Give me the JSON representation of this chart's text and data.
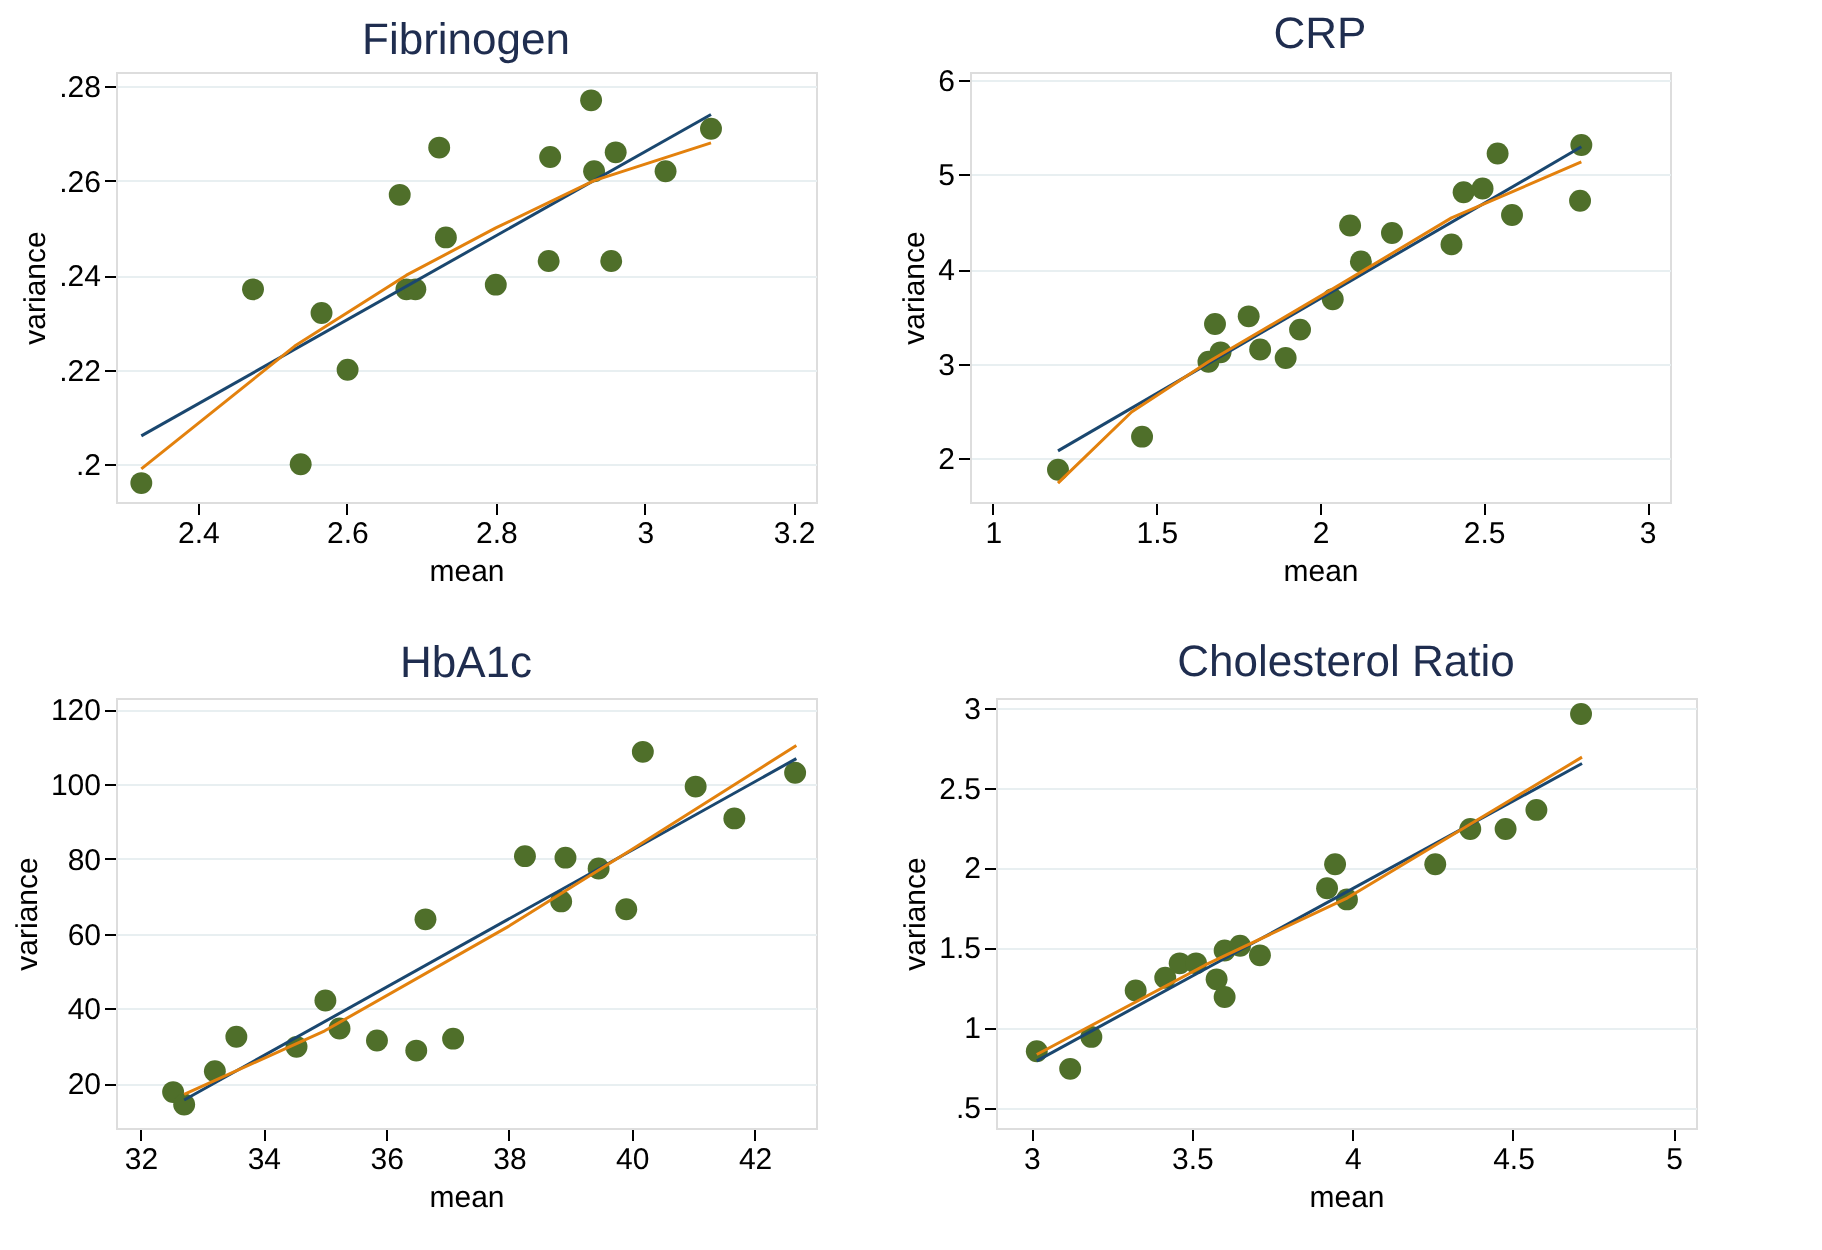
{
  "chart_data": [
    {
      "type": "scatter",
      "title": "Fibrinogen",
      "xlabel": "mean",
      "ylabel": "variance",
      "xlim": [
        2.29,
        3.23
      ],
      "ylim": [
        0.192,
        0.283
      ],
      "xticks": [
        2.4,
        2.6,
        2.8,
        3,
        3.2
      ],
      "yticks": [
        {
          "value": 0.2,
          "label": ".2"
        },
        {
          "value": 0.22,
          "label": ".22"
        },
        {
          "value": 0.24,
          "label": ".24"
        },
        {
          "value": 0.26,
          "label": ".26"
        },
        {
          "value": 0.28,
          "label": ".28"
        }
      ],
      "grid": "y",
      "marker": "circle",
      "line_style": "solid",
      "series": [
        {
          "color": "#4f6f2a",
          "x": [
            2.324,
            2.474,
            2.538,
            2.566,
            2.601,
            2.671,
            2.68,
            2.692,
            2.724,
            2.733,
            2.8,
            2.871,
            2.873,
            2.928,
            2.932,
            2.955,
            2.961,
            3.028,
            3.089
          ],
          "values": [
            0.196,
            0.237,
            0.2,
            0.232,
            0.22,
            0.257,
            0.237,
            0.237,
            0.267,
            0.248,
            0.238,
            0.243,
            0.265,
            0.277,
            0.262,
            0.243,
            0.266,
            0.262,
            0.271
          ]
        },
        {
          "type": "line",
          "marker": "none",
          "color": "#1a476f",
          "x": [
            2.324,
            3.089
          ],
          "values": [
            0.206,
            0.274
          ]
        },
        {
          "type": "line",
          "marker": "none",
          "color": "#e3810d",
          "x": [
            2.324,
            2.53,
            2.68,
            2.8,
            2.932,
            3.089
          ],
          "values": [
            0.199,
            0.225,
            0.24,
            0.25,
            0.26,
            0.268
          ]
        }
      ]
    },
    {
      "type": "scatter",
      "title": "CRP",
      "xlabel": "mean",
      "ylabel": "variance",
      "xlim": [
        0.93,
        3.07
      ],
      "ylim": [
        1.54,
        6.08
      ],
      "xticks": [
        1,
        1.5,
        2,
        2.5,
        3
      ],
      "yticks": [
        2,
        3,
        4,
        5,
        6
      ],
      "grid": "y",
      "marker": "circle",
      "line_style": "solid",
      "series": [
        {
          "color": "#4f6f2a",
          "x": [
            1.199,
            1.456,
            1.659,
            1.679,
            1.696,
            1.782,
            1.817,
            1.895,
            1.939,
            2.039,
            2.092,
            2.125,
            2.22,
            2.402,
            2.439,
            2.497,
            2.543,
            2.587,
            2.799,
            2.795
          ],
          "values": [
            1.88,
            2.23,
            3.02,
            3.42,
            3.12,
            3.5,
            3.15,
            3.06,
            3.36,
            3.68,
            4.46,
            4.08,
            4.38,
            4.26,
            4.81,
            4.85,
            5.22,
            4.57,
            5.31,
            4.72
          ]
        },
        {
          "type": "line",
          "marker": "none",
          "color": "#1a476f",
          "x": [
            1.199,
            2.799
          ],
          "values": [
            2.08,
            5.29
          ]
        },
        {
          "type": "line",
          "marker": "none",
          "color": "#e3810d",
          "x": [
            1.199,
            1.424,
            1.659,
            2.039,
            2.402,
            2.799
          ],
          "values": [
            1.74,
            2.49,
            3.02,
            3.79,
            4.54,
            5.13
          ]
        }
      ]
    },
    {
      "type": "scatter",
      "title": "HbA1c",
      "xlabel": "mean",
      "ylabel": "variance",
      "xlim": [
        31.6,
        43.0
      ],
      "ylim": [
        8,
        123
      ],
      "xticks": [
        32,
        34,
        36,
        38,
        40,
        42
      ],
      "yticks": [
        20,
        40,
        60,
        80,
        100,
        120
      ],
      "grid": "y",
      "marker": "circle",
      "line_style": "solid",
      "series": [
        {
          "color": "#4f6f2a",
          "x": [
            32.53,
            32.71,
            33.21,
            33.56,
            34.54,
            35.01,
            35.24,
            35.85,
            36.49,
            36.64,
            37.09,
            38.26,
            38.85,
            38.92,
            39.46,
            39.91,
            40.18,
            41.04,
            41.67,
            42.66
          ],
          "values": [
            17.6,
            14.3,
            23.2,
            32.4,
            29.7,
            42.1,
            34.6,
            31.4,
            28.7,
            63.8,
            31.9,
            80.7,
            68.6,
            80.3,
            77.4,
            66.5,
            108.6,
            99.3,
            90.8,
            103.0
          ]
        },
        {
          "type": "line",
          "marker": "none",
          "color": "#1a476f",
          "x": [
            32.71,
            42.68
          ],
          "values": [
            15.5,
            106.8
          ]
        },
        {
          "type": "line",
          "marker": "none",
          "color": "#e3810d",
          "x": [
            32.71,
            35,
            38,
            40,
            42.68
          ],
          "values": [
            17.0,
            34,
            62,
            82.5,
            110.3
          ]
        }
      ]
    },
    {
      "type": "scatter",
      "title": "Cholesterol Ratio",
      "xlabel": "mean",
      "ylabel": "variance",
      "xlim": [
        2.89,
        5.07
      ],
      "ylim": [
        0.37,
        3.06
      ],
      "xticks": [
        3,
        3.5,
        4,
        4.5,
        5
      ],
      "yticks": [
        {
          "value": 0.5,
          "label": ".5"
        },
        1,
        1.5,
        2,
        2.5,
        3
      ],
      "grid": "y",
      "marker": "circle",
      "line_style": "solid",
      "series": [
        {
          "color": "#4f6f2a",
          "x": [
            3.017,
            3.121,
            3.187,
            3.325,
            3.417,
            3.462,
            3.513,
            3.577,
            3.602,
            3.602,
            3.65,
            3.712,
            3.921,
            3.946,
            3.983,
            4.258,
            4.367,
            4.477,
            4.573,
            4.712
          ],
          "values": [
            0.85,
            0.74,
            0.94,
            1.23,
            1.31,
            1.4,
            1.4,
            1.3,
            1.19,
            1.48,
            1.51,
            1.45,
            1.87,
            2.02,
            1.8,
            2.02,
            2.24,
            2.24,
            2.36,
            2.96
          ]
        },
        {
          "type": "line",
          "marker": "none",
          "color": "#1a476f",
          "x": [
            3.017,
            4.715
          ],
          "values": [
            0.79,
            2.65
          ]
        },
        {
          "type": "line",
          "marker": "none",
          "color": "#e3810d",
          "x": [
            3.017,
            3.542,
            3.985,
            4.715
          ],
          "values": [
            0.83,
            1.39,
            1.81,
            2.69
          ]
        }
      ]
    }
  ]
}
